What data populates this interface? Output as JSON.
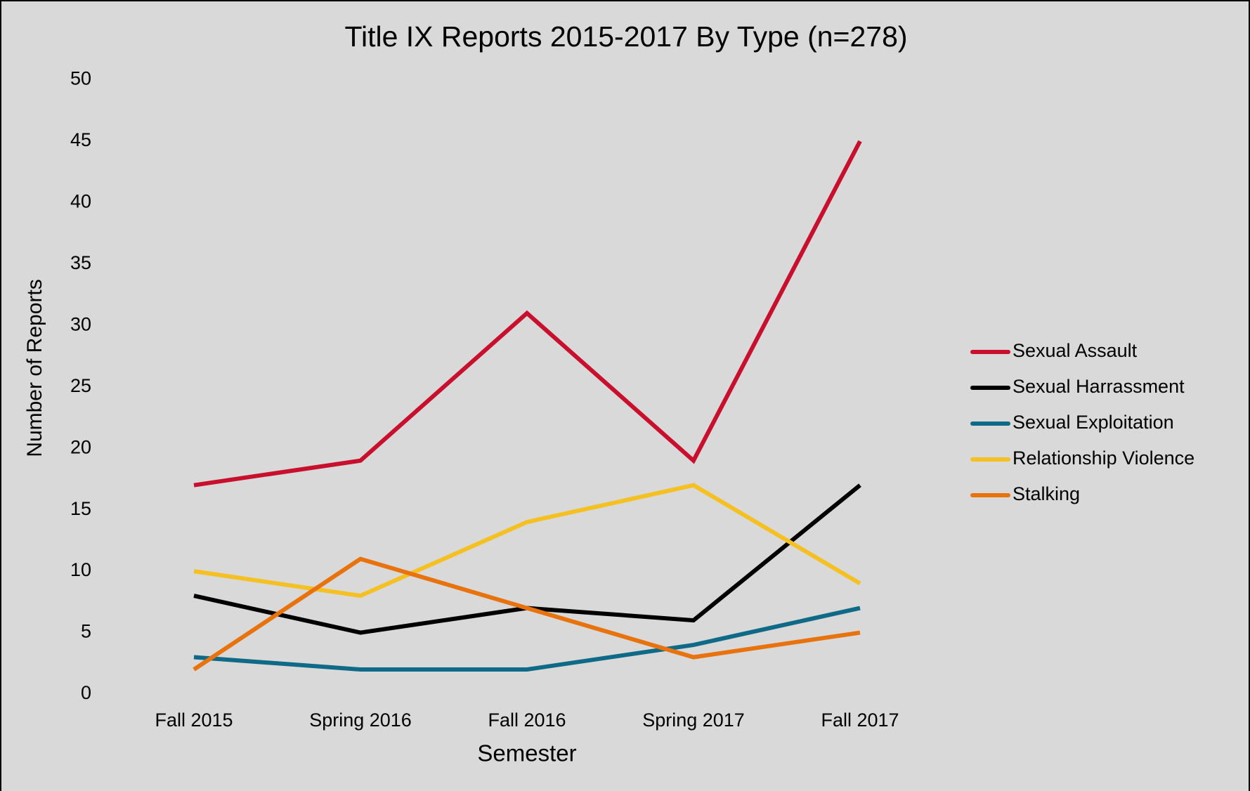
{
  "chart_data": {
    "type": "line",
    "title": "Title IX Reports 2015-2017 By Type (n=278)",
    "x_label": "Semester",
    "y_label": "Number of Reports",
    "categories": [
      "Fall 2015",
      "Spring 2016",
      "Fall 2016",
      "Spring 2017",
      "Fall 2017"
    ],
    "series": [
      {
        "name": "Sexual Assault",
        "color": "#c8102e",
        "values": [
          17,
          19,
          31,
          19,
          45
        ]
      },
      {
        "name": "Sexual Harrassment",
        "color": "#000000",
        "values": [
          8,
          5,
          7,
          6,
          17
        ]
      },
      {
        "name": "Sexual Exploitation",
        "color": "#0e6a87",
        "values": [
          3,
          2,
          2,
          4,
          7
        ]
      },
      {
        "name": "Relationship Violence",
        "color": "#f5c022",
        "values": [
          10,
          8,
          14,
          17,
          9
        ]
      },
      {
        "name": "Stalking",
        "color": "#e8720c",
        "values": [
          2,
          11,
          7,
          3,
          5
        ]
      }
    ],
    "ylim": [
      0,
      50
    ],
    "yticks": [
      0,
      5,
      10,
      15,
      20,
      25,
      30,
      35,
      40,
      45,
      50
    ],
    "grid": false,
    "legend": "right"
  }
}
